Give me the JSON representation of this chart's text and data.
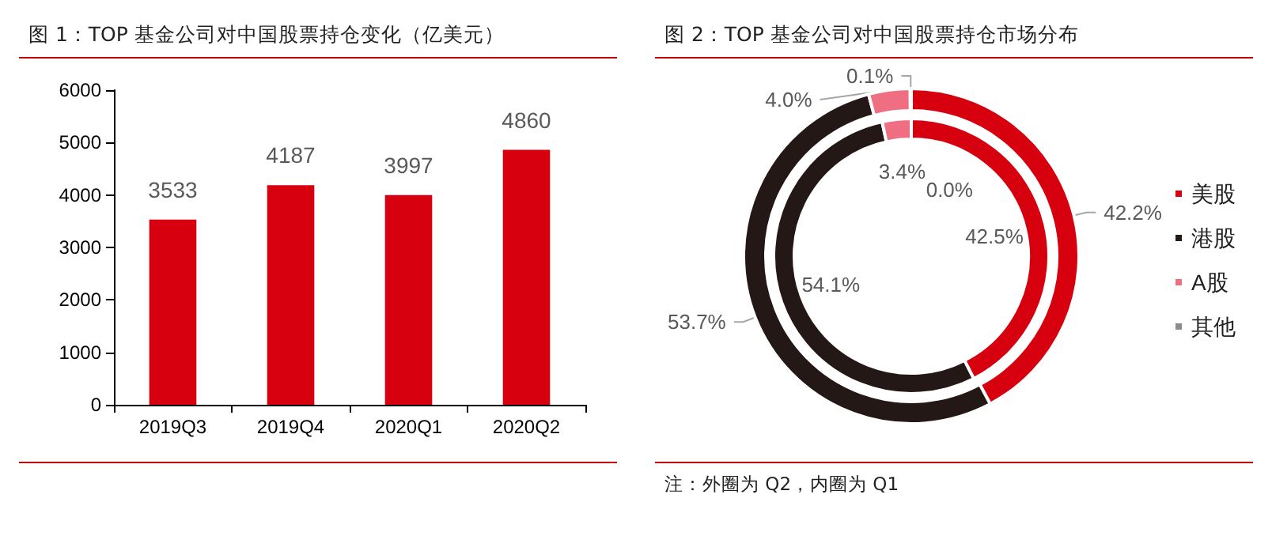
{
  "chart_data": [
    {
      "type": "bar",
      "title": "图 1：TOP 基金公司对中国股票持仓变化（亿美元）",
      "categories": [
        "2019Q3",
        "2019Q4",
        "2020Q1",
        "2020Q2"
      ],
      "values": [
        3533,
        4187,
        3997,
        4860
      ],
      "color": "#d7000f",
      "ylim": [
        0,
        6000
      ],
      "yticks": [
        0,
        1000,
        2000,
        3000,
        4000,
        5000,
        6000
      ],
      "data_labels": true,
      "grid": false,
      "legend": false
    },
    {
      "type": "donut",
      "title": "图 2：TOP 基金公司对中国股票持仓市场分布",
      "categories": [
        "美股",
        "港股",
        "A股",
        "其他"
      ],
      "colors": [
        "#d7000f",
        "#231815",
        "#f06e82",
        "#8c8c8c"
      ],
      "legend": "right",
      "annotations": [
        "注：外圈为 Q2，内圈为 Q1"
      ],
      "series": [
        {
          "values": [
            42.2,
            53.7,
            4.0,
            0.1
          ],
          "value_labels": [
            "42.2%",
            "53.7%",
            "4.0%",
            "0.1%"
          ]
        },
        {
          "values": [
            42.5,
            54.1,
            3.4,
            0.0
          ],
          "value_labels": [
            "42.5%",
            "54.1%",
            "3.4%",
            "0.0%"
          ]
        }
      ]
    }
  ]
}
